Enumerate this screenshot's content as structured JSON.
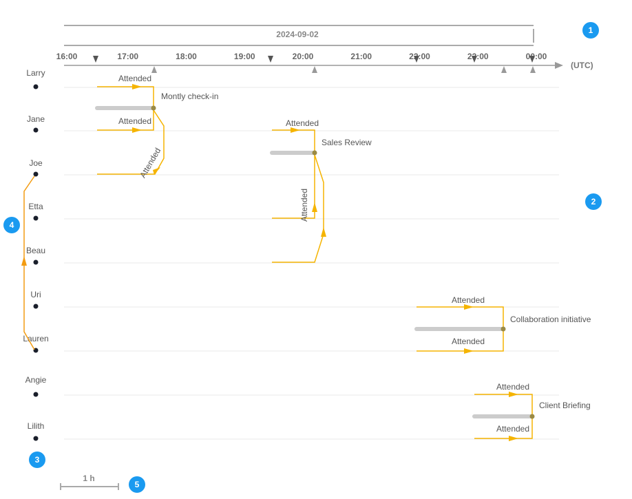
{
  "date": "2024-09-02",
  "time_axis": {
    "labels": [
      "16:00",
      "17:00",
      "18:00",
      "19:00",
      "20:00",
      "21:00",
      "22:00",
      "23:00",
      "00:00"
    ],
    "unit": "(UTC)"
  },
  "people": [
    "Larry",
    "Jane",
    "Joe",
    "Etta",
    "Beau",
    "Uri",
    "Lauren",
    "Angie",
    "Lilith"
  ],
  "meetings": [
    {
      "title": "Montly check-in",
      "attendance": [
        "Attended",
        "Attended",
        "Attended"
      ]
    },
    {
      "title": "Sales Review",
      "attendance": [
        "Attended",
        "Attended"
      ]
    },
    {
      "title": "Collaboration initiative",
      "attendance": [
        "Attended",
        "Attended"
      ]
    },
    {
      "title": "Client Briefing",
      "attendance": [
        "Attended",
        "Attended"
      ]
    }
  ],
  "scale": "1 h",
  "badges": [
    "1",
    "2",
    "3",
    "4",
    "5"
  ]
}
